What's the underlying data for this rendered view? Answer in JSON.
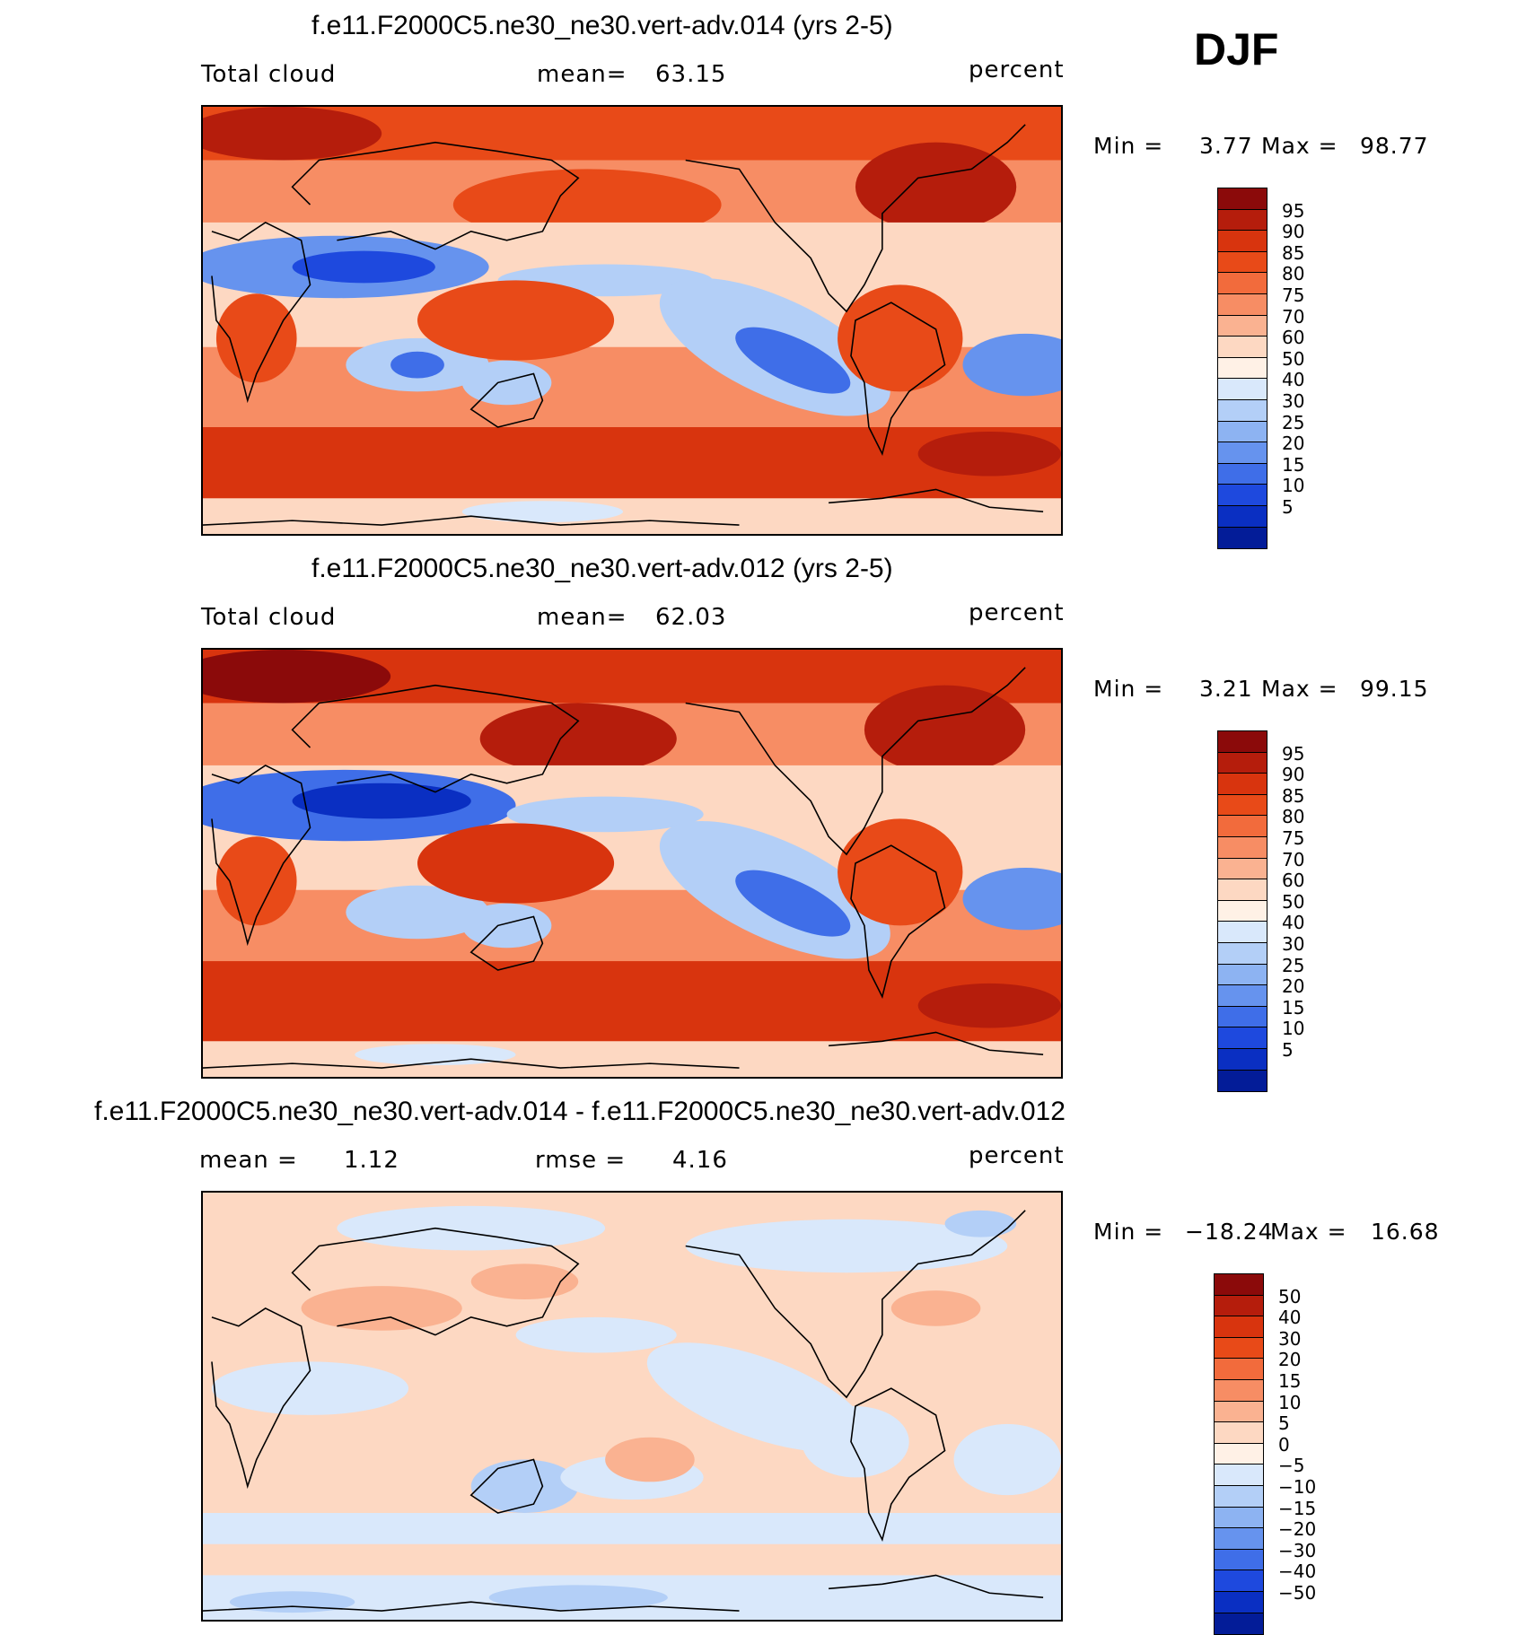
{
  "season": "DJF",
  "panels": [
    {
      "title": "f.e11.F2000C5.ne30_ne30.vert-adv.014 (yrs 2-5)",
      "variable": "Total cloud",
      "stat1_label": "mean=",
      "stat1_value": "63.15",
      "units": "percent",
      "min_label": "Min =",
      "min_value": "3.77",
      "max_label": "Max =",
      "max_value": "98.77"
    },
    {
      "title": "f.e11.F2000C5.ne30_ne30.vert-adv.012 (yrs 2-5)",
      "variable": "Total cloud",
      "stat1_label": "mean=",
      "stat1_value": "62.03",
      "units": "percent",
      "min_label": "Min =",
      "min_value": "3.21",
      "max_label": "Max =",
      "max_value": "99.15"
    },
    {
      "title": "f.e11.F2000C5.ne30_ne30.vert-adv.014 - f.e11.F2000C5.ne30_ne30.vert-adv.012",
      "variable": "",
      "stat1_label": "mean =",
      "stat1_value": "1.12",
      "stat2_label": "rmse =",
      "stat2_value": "4.16",
      "units": "percent",
      "min_label": "Min =",
      "min_value": "−18.24",
      "max_label": "Max =",
      "max_value": "16.68"
    }
  ],
  "colorbar_abs": {
    "labels": [
      "95",
      "90",
      "85",
      "80",
      "75",
      "70",
      "60",
      "50",
      "40",
      "30",
      "25",
      "20",
      "15",
      "10",
      "5"
    ],
    "colors": [
      "#8b0a0a",
      "#b51d0c",
      "#d8340e",
      "#e84a18",
      "#f26b3c",
      "#f78d64",
      "#fab291",
      "#fdd8c2",
      "#fff1e6",
      "#d9e8fb",
      "#b3cff7",
      "#8db3f2",
      "#6693ee",
      "#3f6ee8",
      "#1e49de",
      "#0a2fc2",
      "#031c98"
    ]
  },
  "colorbar_diff": {
    "labels": [
      "50",
      "40",
      "30",
      "20",
      "15",
      "10",
      "5",
      "0",
      "−5",
      "−10",
      "−15",
      "−20",
      "−30",
      "−40",
      "−50"
    ],
    "colors": [
      "#8b0a0a",
      "#b51d0c",
      "#d8340e",
      "#e84a18",
      "#f26b3c",
      "#f78d64",
      "#fab291",
      "#fdd8c2",
      "#fff1e6",
      "#d9e8fb",
      "#b3cff7",
      "#8db3f2",
      "#6693ee",
      "#3f6ee8",
      "#1e49de",
      "#0a2fc2",
      "#031c98"
    ]
  }
}
